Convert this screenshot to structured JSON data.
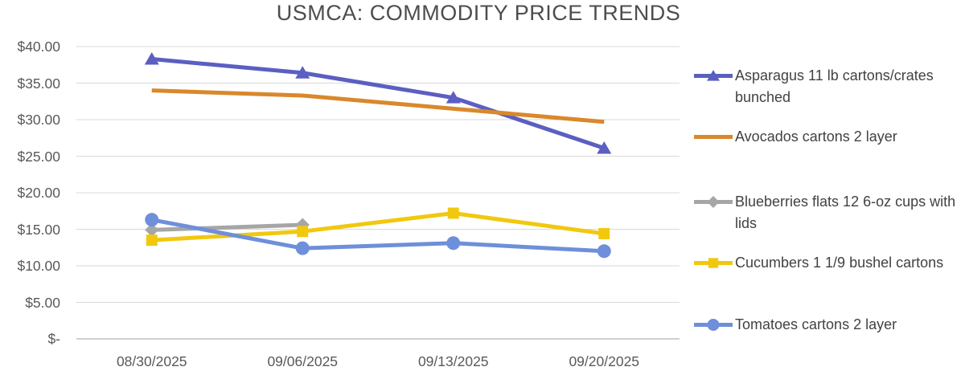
{
  "chart_data": {
    "type": "line",
    "title": "USMCA: COMMODITY PRICE TRENDS",
    "categories": [
      "08/30/2025",
      "09/06/2025",
      "09/13/2025",
      "09/20/2025"
    ],
    "y_axis": {
      "min": 0,
      "max": 40,
      "step": 5,
      "tick_labels": [
        "$40.00",
        "$35.00",
        "$30.00",
        "$25.00",
        "$20.00",
        "$15.00",
        "$10.00",
        "$5.00",
        "$-"
      ]
    },
    "grid": "horizontal",
    "legend_position": "right",
    "series": [
      {
        "name": "Asparagus 11 lb cartons/crates bunched",
        "color": "#5B5FC1",
        "marker": "triangle",
        "values": [
          38.3,
          36.4,
          33.0,
          26.1
        ]
      },
      {
        "name": "Avocados cartons 2 layer",
        "color": "#D9882B",
        "marker": "none",
        "values": [
          34.0,
          33.3,
          31.5,
          29.7
        ]
      },
      {
        "name": "Blueberries flats 12 6-oz cups with lids",
        "color": "#A6A6A6",
        "marker": "diamond",
        "values": [
          14.9,
          15.6,
          null,
          null
        ]
      },
      {
        "name": "Cucumbers 1 1/9 bushel cartons",
        "color": "#F1C80E",
        "marker": "square",
        "values": [
          13.5,
          14.7,
          17.2,
          14.4
        ]
      },
      {
        "name": "Tomatoes cartons 2 layer",
        "color": "#6E8FD9",
        "marker": "circle",
        "values": [
          16.3,
          12.4,
          13.1,
          12.0
        ]
      }
    ]
  },
  "colors": {
    "background": "#FFFFFF",
    "gridline": "#D9D9D9",
    "axis_line": "#BFBFBF",
    "title_text": "#4D4D4D",
    "axis_text": "#595959",
    "legend_text": "#424242"
  }
}
